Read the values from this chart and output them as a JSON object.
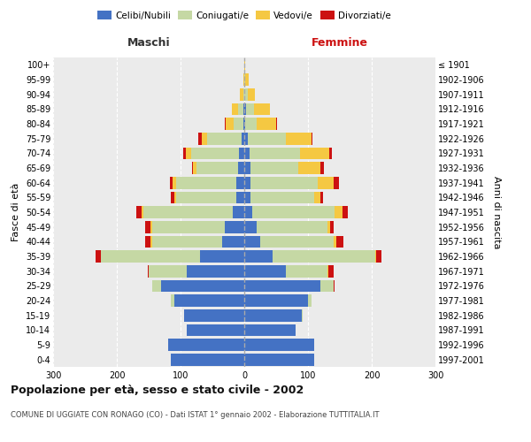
{
  "age_groups": [
    "0-4",
    "5-9",
    "10-14",
    "15-19",
    "20-24",
    "25-29",
    "30-34",
    "35-39",
    "40-44",
    "45-49",
    "50-54",
    "55-59",
    "60-64",
    "65-69",
    "70-74",
    "75-79",
    "80-84",
    "85-89",
    "90-94",
    "95-99",
    "100+"
  ],
  "birth_years": [
    "1997-2001",
    "1992-1996",
    "1987-1991",
    "1982-1986",
    "1977-1981",
    "1972-1976",
    "1967-1971",
    "1962-1966",
    "1957-1961",
    "1952-1956",
    "1947-1951",
    "1942-1946",
    "1937-1941",
    "1932-1936",
    "1927-1931",
    "1922-1926",
    "1917-1921",
    "1912-1916",
    "1907-1911",
    "1902-1906",
    "≤ 1901"
  ],
  "colors": {
    "celibi": "#4472c4",
    "coniugati": "#c5d8a4",
    "vedovi": "#f5c842",
    "divorziati": "#cc1111"
  },
  "maschi": {
    "celibi": [
      115,
      120,
      90,
      95,
      110,
      130,
      90,
      70,
      35,
      30,
      18,
      12,
      12,
      10,
      8,
      4,
      2,
      2,
      0,
      0,
      0
    ],
    "coniugati": [
      0,
      0,
      0,
      0,
      5,
      15,
      60,
      155,
      110,
      115,
      140,
      95,
      95,
      65,
      75,
      55,
      15,
      8,
      2,
      0,
      0
    ],
    "vedovi": [
      0,
      0,
      0,
      0,
      0,
      0,
      0,
      0,
      2,
      2,
      3,
      3,
      5,
      5,
      8,
      8,
      12,
      10,
      5,
      2,
      0
    ],
    "divorziati": [
      0,
      0,
      0,
      0,
      0,
      0,
      2,
      8,
      8,
      8,
      8,
      5,
      5,
      2,
      5,
      5,
      1,
      0,
      0,
      0,
      0
    ]
  },
  "femmine": {
    "celibi": [
      110,
      110,
      80,
      90,
      100,
      120,
      65,
      45,
      25,
      20,
      12,
      10,
      10,
      10,
      8,
      5,
      2,
      3,
      0,
      0,
      0
    ],
    "coniugati": [
      0,
      0,
      0,
      2,
      5,
      20,
      65,
      160,
      115,
      110,
      130,
      100,
      105,
      75,
      80,
      60,
      18,
      12,
      5,
      2,
      0
    ],
    "vedovi": [
      0,
      0,
      0,
      0,
      0,
      0,
      2,
      2,
      5,
      5,
      12,
      10,
      25,
      35,
      45,
      40,
      30,
      25,
      12,
      5,
      2
    ],
    "divorziati": [
      0,
      0,
      0,
      0,
      0,
      2,
      8,
      8,
      10,
      5,
      8,
      3,
      8,
      5,
      5,
      2,
      2,
      0,
      0,
      0,
      0
    ]
  },
  "xlim": 300,
  "title": "Popolazione per età, sesso e stato civile - 2002",
  "subtitle": "COMUNE DI UGGIATE CON RONAGO (CO) - Dati ISTAT 1° gennaio 2002 - Elaborazione TUTTITALIA.IT",
  "xlabel_left": "Maschi",
  "xlabel_right": "Femmine",
  "ylabel_left": "Fasce di età",
  "ylabel_right": "Anni di nascita",
  "legend_labels": [
    "Celibi/Nubili",
    "Coniugati/e",
    "Vedovi/e",
    "Divorziati/e"
  ],
  "background_color": "#ffffff",
  "plot_bg": "#ebebeb",
  "grid_color": "#ffffff"
}
